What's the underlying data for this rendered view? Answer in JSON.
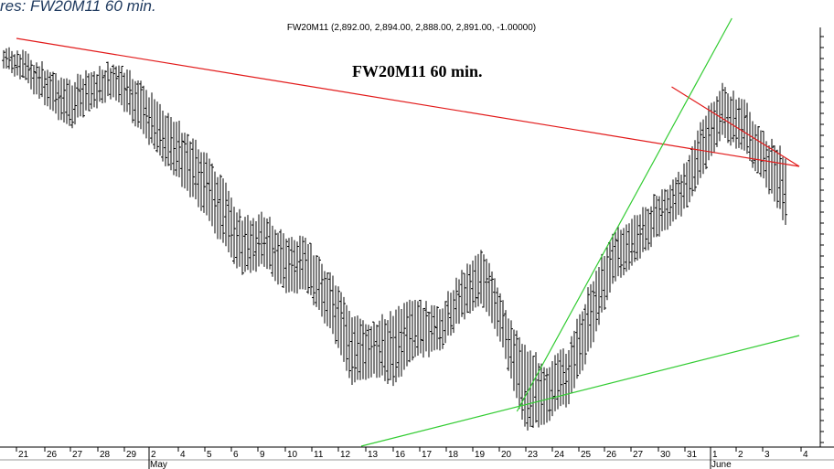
{
  "window": {
    "title": "res: FW20M11 60 min."
  },
  "header": {
    "ohlc_readout": "FW20M11 (2,892.00, 2,894.00, 2,888.00, 2,891.00, -1.00000)"
  },
  "chart_data": {
    "type": "ohlc-bar",
    "title": "FW20M11 60 min.",
    "colors": {
      "bars": "#000000",
      "resistance_line": "#e21a1a",
      "support_line": "#33cc33",
      "background": "#ffffff",
      "grid_ticks": "#000000"
    },
    "x_axis": {
      "day_labels": [
        "21",
        "26",
        "27",
        "28",
        "29",
        "2",
        "4",
        "5",
        "6",
        "9",
        "10",
        "11",
        "12",
        "13",
        "16",
        "17",
        "18",
        "19",
        "20",
        "23",
        "24",
        "25",
        "26",
        "27",
        "30",
        "31",
        "1",
        "2",
        "3",
        "4"
      ],
      "month_labels": [
        "May",
        "June"
      ],
      "month_start_day_index": [
        5,
        26
      ]
    },
    "y_axis": {
      "visible_labels": false
    },
    "price_path_high_low": [
      [
        0,
        55,
        75
      ],
      [
        1,
        60,
        90
      ],
      [
        2,
        75,
        115
      ],
      [
        3,
        90,
        140
      ],
      [
        4,
        80,
        120
      ],
      [
        5,
        70,
        105
      ],
      [
        6,
        85,
        135
      ],
      [
        7,
        110,
        165
      ],
      [
        8,
        135,
        195
      ],
      [
        9,
        160,
        225
      ],
      [
        10,
        195,
        265
      ],
      [
        11,
        240,
        300
      ],
      [
        12,
        235,
        290
      ],
      [
        13,
        260,
        320
      ],
      [
        14,
        265,
        320
      ],
      [
        15,
        300,
        360
      ],
      [
        16,
        345,
        420
      ],
      [
        17,
        355,
        410
      ],
      [
        18,
        340,
        420
      ],
      [
        19,
        330,
        390
      ],
      [
        20,
        340,
        385
      ],
      [
        21,
        300,
        350
      ],
      [
        22,
        270,
        330
      ],
      [
        23,
        335,
        385
      ],
      [
        24,
        380,
        470
      ],
      [
        25,
        400,
        460
      ],
      [
        26,
        380,
        440
      ],
      [
        27,
        310,
        380
      ],
      [
        28,
        255,
        310
      ],
      [
        29,
        240,
        290
      ],
      [
        30,
        215,
        260
      ],
      [
        31,
        195,
        240
      ],
      [
        32,
        140,
        200
      ],
      [
        33,
        95,
        150
      ],
      [
        34,
        110,
        165
      ],
      [
        35,
        150,
        200
      ],
      [
        36,
        170,
        245
      ]
    ],
    "trend_lines": [
      {
        "name": "resistance-long",
        "from": [
          0,
          42
        ],
        "to": [
          36,
          182
        ]
      },
      {
        "name": "resistance-short",
        "from": [
          31.5,
          95
        ],
        "to": [
          36,
          182
        ]
      },
      {
        "name": "support-steep",
        "from": [
          24,
          450
        ],
        "to": [
          34.5,
          20
        ]
      },
      {
        "name": "support-shallow",
        "from": [
          16.5,
          488
        ],
        "to": [
          36,
          367
        ]
      }
    ]
  }
}
